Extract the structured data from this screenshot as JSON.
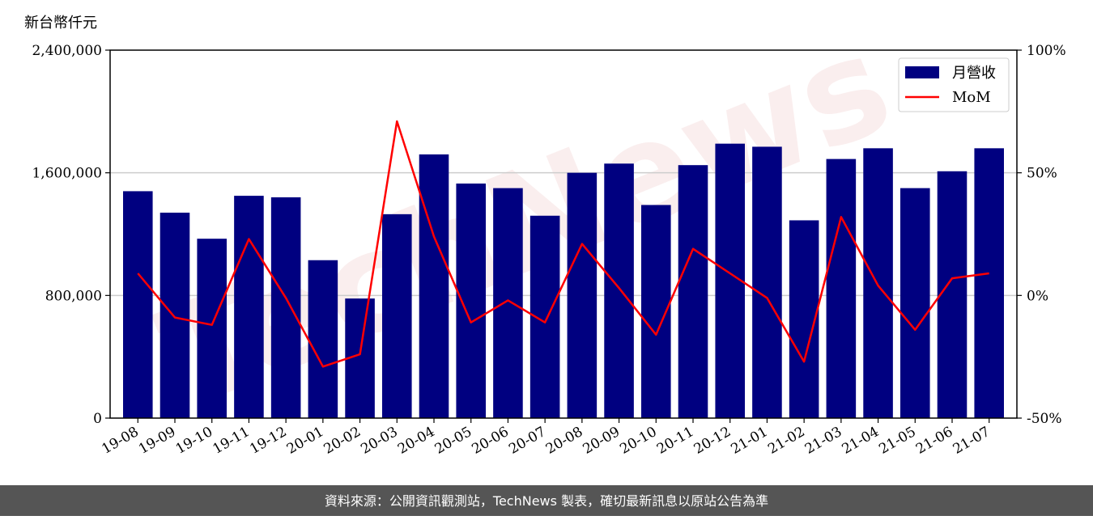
{
  "chart_data": {
    "type": "bar",
    "unit_label": "新台幣仟元",
    "categories": [
      "19-08",
      "19-09",
      "19-10",
      "19-11",
      "19-12",
      "20-01",
      "20-02",
      "20-03",
      "20-04",
      "20-05",
      "20-06",
      "20-07",
      "20-08",
      "20-09",
      "20-10",
      "20-11",
      "20-12",
      "21-01",
      "21-02",
      "21-03",
      "21-04",
      "21-05",
      "21-06",
      "21-07"
    ],
    "series": [
      {
        "name": "月營收",
        "type": "bar",
        "axis": "left",
        "color": "#000080",
        "values": [
          1480000,
          1340000,
          1170000,
          1450000,
          1440000,
          1030000,
          780000,
          1330000,
          1720000,
          1530000,
          1500000,
          1320000,
          1600000,
          1660000,
          1390000,
          1650000,
          1790000,
          1770000,
          1290000,
          1690000,
          1760000,
          1500000,
          1610000,
          1760000
        ]
      },
      {
        "name": "MoM",
        "type": "line",
        "axis": "right",
        "color": "#ff0000",
        "values": [
          9,
          -9,
          -12,
          23,
          -1,
          -29,
          -24,
          71,
          24,
          -11,
          -2,
          -11,
          21,
          3,
          -16,
          19,
          9,
          -1,
          -27,
          32,
          4,
          -14,
          7,
          9
        ]
      }
    ],
    "ylim_left": [
      0,
      2400000
    ],
    "yticks_left": [
      "0",
      "800,000",
      "1,600,000",
      "2,400,000"
    ],
    "ylim_right": [
      -50,
      100
    ],
    "yticks_right": [
      "-50%",
      "0%",
      "50%",
      "100%"
    ],
    "grid": "horizontal",
    "legend": "top-right"
  },
  "footer": {
    "text": "資料來源：公開資訊觀測站，TechNews 製表，確切最新訊息以原站公告為準"
  },
  "watermark": {
    "text": "TechNews"
  },
  "colors": {
    "footer_bg": "#555555",
    "grid": "#cccccc",
    "bar": "#000080",
    "line": "#ff0000"
  }
}
